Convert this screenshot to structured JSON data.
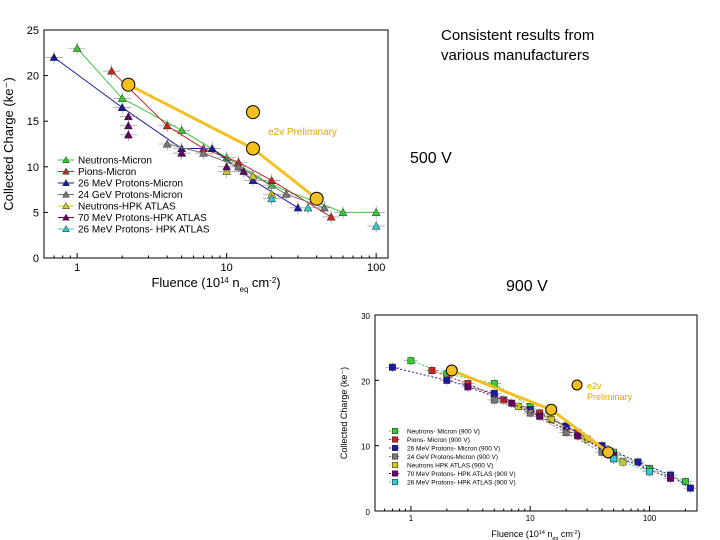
{
  "annotations": {
    "consistent": "Consistent results from various manufacturers",
    "v500": "500 V",
    "v900": "900 V"
  },
  "chart_data": [
    {
      "type": "scatter",
      "xscale": "log",
      "xlim": [
        0.6,
        120
      ],
      "ylim": [
        0,
        25
      ],
      "xticks": [
        "1",
        "10",
        "100"
      ],
      "yticks": [
        "0",
        "5",
        "10",
        "15",
        "20",
        "25"
      ],
      "xlabel": "Fluence (10^14 n_eq cm^-2)",
      "ylabel": "Collected Charge (ke⁻)",
      "overlay_label": "e2v  Preliminary",
      "legend_position": "bottom-left",
      "series": [
        {
          "name": "Neutrons-Micron",
          "color": "#33cc33",
          "marker": "triangle",
          "line": true,
          "x": [
            1,
            2,
            5,
            10,
            20,
            60,
            100
          ],
          "y": [
            23,
            17.5,
            14,
            11,
            8,
            5,
            5
          ]
        },
        {
          "name": "Pions-Micron",
          "color": "#cc2222",
          "marker": "triangle",
          "line": true,
          "x": [
            1.7,
            4,
            7,
            12,
            20,
            50
          ],
          "y": [
            20.5,
            14.5,
            12,
            10.5,
            8.5,
            4.5
          ]
        },
        {
          "name": "26 MeV Protons-Micron",
          "color": "#1a1aa0",
          "marker": "triangle",
          "line": true,
          "x": [
            0.7,
            2,
            5,
            8,
            15,
            30
          ],
          "y": [
            22,
            16.5,
            12,
            12,
            8.5,
            5.5
          ]
        },
        {
          "name": "24 GeV Protons-Micron",
          "color": "#777777",
          "marker": "triangle",
          "line": true,
          "x": [
            4,
            7,
            12,
            25,
            45
          ],
          "y": [
            12.5,
            11.5,
            10,
            7,
            5.5
          ]
        },
        {
          "name": "Neutrons-HPK ATLAS",
          "color": "#cccc22",
          "marker": "triangle",
          "line": false,
          "x": [
            5,
            10,
            15,
            20
          ],
          "y": [
            11.5,
            9.5,
            9,
            7
          ]
        },
        {
          "name": "70 MeV Protons-HPK ATLAS",
          "color": "#660066",
          "marker": "triangle",
          "line": false,
          "x": [
            2.2,
            2.2,
            2.2,
            5,
            10,
            13
          ],
          "y": [
            15.5,
            14.5,
            13.5,
            11.5,
            10,
            9.5
          ]
        },
        {
          "name": "26 MeV Protons- HPK ATLAS",
          "color": "#33cccc",
          "marker": "triangle",
          "line": false,
          "x": [
            20,
            35,
            100
          ],
          "y": [
            6.5,
            5.5,
            3.5
          ]
        }
      ],
      "overlay_series": {
        "name": "e2v",
        "color": "#f4c020",
        "x": [
          2.2,
          15,
          40
        ],
        "y": [
          19,
          12,
          6.5
        ],
        "extra_point": {
          "x": 15,
          "y": 16
        }
      }
    },
    {
      "type": "scatter",
      "xscale": "log",
      "xlim": [
        0.5,
        250
      ],
      "ylim": [
        0,
        30
      ],
      "xticks": [
        "1",
        "10",
        "100"
      ],
      "yticks": [
        "0",
        "10",
        "20",
        "30"
      ],
      "xlabel": "Fluence (10^14 n_eq cm^-2)",
      "ylabel": "Collected Charge (ke⁻)",
      "overlay_label": "e2v\nPreliminary",
      "legend_position": "bottom-left",
      "series": [
        {
          "name": "Neutrons- Micron (900 V)",
          "color": "#33cc33",
          "marker": "square",
          "x": [
            1,
            2,
            5,
            10,
            20,
            50,
            100,
            200
          ],
          "y": [
            23,
            21,
            19.5,
            16,
            13,
            9,
            6.5,
            4.5
          ]
        },
        {
          "name": "Pions- Micron (900 V)",
          "color": "#cc2222",
          "marker": "square",
          "x": [
            1.5,
            3,
            6,
            12,
            25,
            50
          ],
          "y": [
            21.5,
            19.5,
            17,
            15,
            12,
            8
          ]
        },
        {
          "name": "26 MeV Protons- Micron (900 V)",
          "color": "#1a1aa0",
          "marker": "square",
          "x": [
            0.7,
            2,
            5,
            10,
            20,
            40,
            80,
            150,
            220
          ],
          "y": [
            22,
            20,
            18,
            15.5,
            13,
            10,
            7.5,
            5.5,
            3.5
          ]
        },
        {
          "name": "24 GeV Protons-Micron (900 V)",
          "color": "#777777",
          "marker": "square",
          "x": [
            5,
            10,
            20,
            40
          ],
          "y": [
            17,
            15,
            12,
            9
          ]
        },
        {
          "name": "Neutrons HPK ATLAS (900 V)",
          "color": "#cccc22",
          "marker": "square",
          "x": [
            8,
            15,
            30,
            60
          ],
          "y": [
            16,
            14,
            11,
            7.5
          ]
        },
        {
          "name": "70 MeV Protons- HPK ATLAS (900 V)",
          "color": "#660066",
          "marker": "square",
          "x": [
            3,
            7,
            12,
            25,
            50,
            150
          ],
          "y": [
            19,
            16.5,
            14.5,
            11.5,
            8.5,
            5
          ]
        },
        {
          "name": "26 MeV Protons- HPK ATLAS (900 V)",
          "color": "#33cccc",
          "marker": "square",
          "x": [
            50,
            100
          ],
          "y": [
            8,
            6
          ]
        }
      ],
      "overlay_series": {
        "name": "e2v",
        "color": "#f4c020",
        "x": [
          2.2,
          15,
          45
        ],
        "y": [
          21.5,
          15.5,
          9
        ]
      }
    }
  ]
}
